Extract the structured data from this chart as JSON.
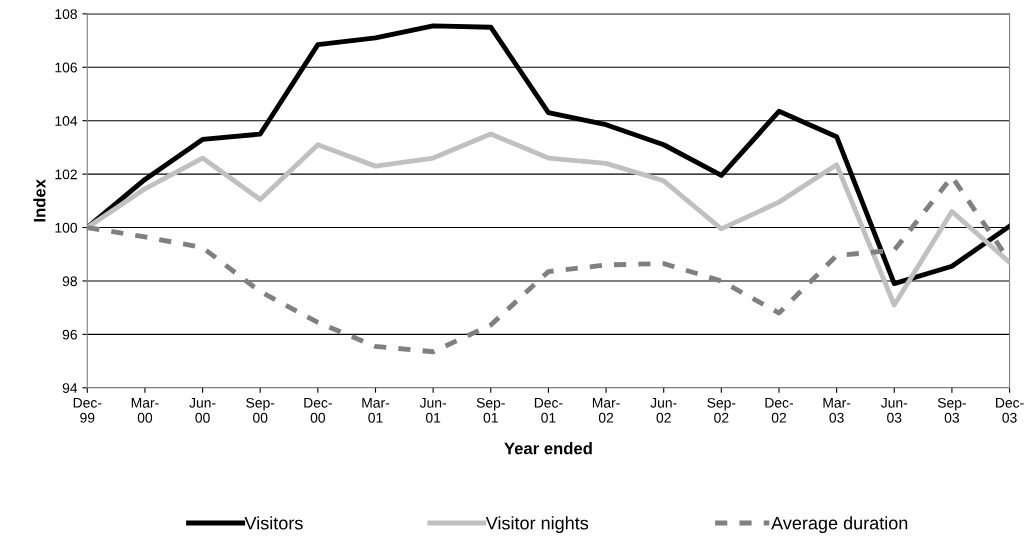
{
  "chart_data": {
    "type": "line",
    "xlabel": "Year ended",
    "ylabel": "Index",
    "categories": [
      "Dec-\n99",
      "Mar-\n00",
      "Jun-\n00",
      "Sep-\n00",
      "Dec-\n00",
      "Mar-\n01",
      "Jun-\n01",
      "Sep-\n01",
      "Dec-\n01",
      "Mar-\n02",
      "Jun-\n02",
      "Sep-\n02",
      "Dec-\n02",
      "Mar-\n03",
      "Jun-\n03",
      "Sep-\n03",
      "Dec-\n03"
    ],
    "series": [
      {
        "name": "Visitors",
        "color": "#000000",
        "line_style": "solid",
        "values": [
          100,
          101.8,
          103.3,
          103.5,
          106.85,
          107.1,
          107.55,
          107.5,
          104.3,
          103.85,
          103.1,
          101.95,
          104.35,
          103.4,
          97.9,
          98.55,
          100.05
        ]
      },
      {
        "name": "Visitor nights",
        "color": "#c0c0c0",
        "line_style": "solid",
        "values": [
          100,
          101.45,
          102.6,
          101.05,
          103.1,
          102.3,
          102.6,
          103.5,
          102.6,
          102.4,
          101.75,
          99.95,
          100.95,
          102.35,
          97.1,
          100.6,
          98.7
        ]
      },
      {
        "name": "Average duration",
        "color": "#808080",
        "line_style": "dashed",
        "values": [
          100,
          99.65,
          99.25,
          97.6,
          96.45,
          95.55,
          95.35,
          96.35,
          98.35,
          98.6,
          98.65,
          98.0,
          96.8,
          98.95,
          99.15,
          101.9,
          98.75
        ]
      }
    ],
    "ylim": [
      94,
      108
    ],
    "yticks": [
      94,
      96,
      98,
      100,
      102,
      104,
      106,
      108
    ],
    "grid": "y",
    "legend": "bottom",
    "marker": "none"
  }
}
